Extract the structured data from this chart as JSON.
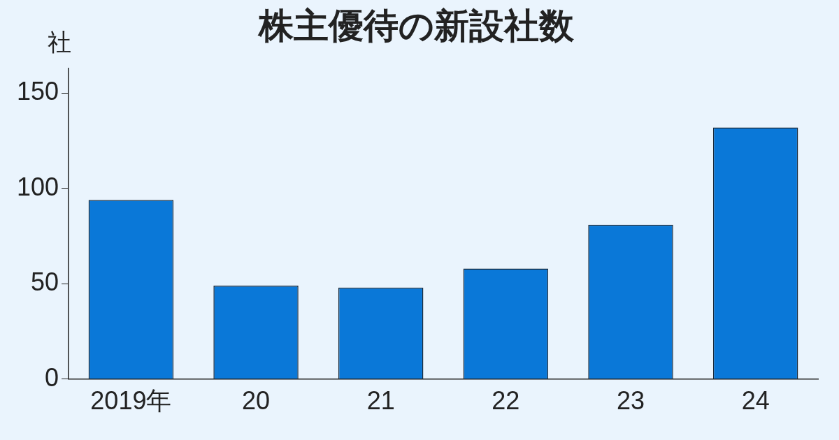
{
  "chart_data": {
    "type": "bar",
    "title": "株主優待の新設社数",
    "ylabel": "社",
    "categories": [
      "2019年",
      "20",
      "21",
      "22",
      "23",
      "24"
    ],
    "values": [
      94,
      49,
      48,
      58,
      81,
      132
    ],
    "color": "#0a78d8",
    "ylim": [
      0,
      163
    ],
    "yticks": [
      0,
      50,
      100,
      150
    ],
    "grid": false,
    "legend": false
  }
}
